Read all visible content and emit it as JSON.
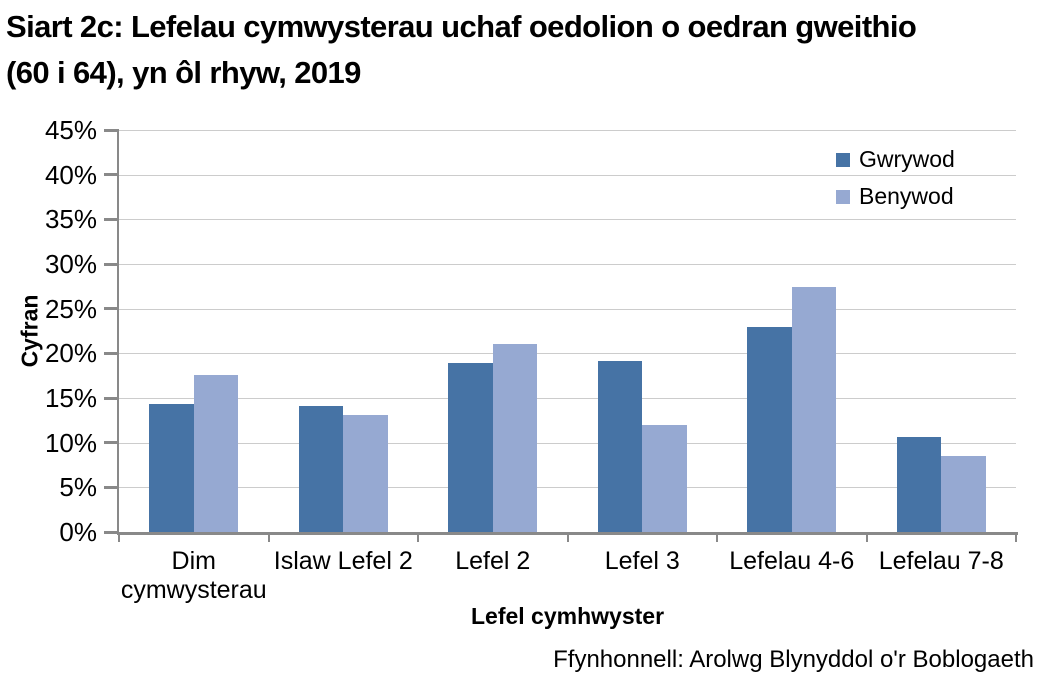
{
  "chart_data": {
    "type": "bar",
    "title": "Siart 2c: Lefelau cymwysterau uchaf oedolion o oedran gweithio (60 i 64), yn ôl rhyw, 2019",
    "categories": [
      "Dim cymwysterau",
      "Islaw Lefel 2",
      "Lefel 2",
      "Lefel 3",
      "Lefelau 4-6",
      "Lefelau 7-8"
    ],
    "series": [
      {
        "name": "Gwrywod",
        "color": "#4673a5",
        "values": [
          14.3,
          14.1,
          18.9,
          19.1,
          22.9,
          10.6
        ]
      },
      {
        "name": "Benywod",
        "color": "#96a9d2",
        "values": [
          17.6,
          13.1,
          21.1,
          12.0,
          27.4,
          8.5
        ]
      }
    ],
    "xlabel": "Lefel cymhwyster",
    "ylabel": "Cyfran",
    "ylim": [
      0,
      45
    ],
    "ytick_step": 5,
    "ytick_suffix": "%",
    "grid": true,
    "legend_position": "top-right",
    "source": "Ffynhonnell: Arolwg Blynyddol o'r Boblogaeth"
  },
  "colors": {
    "grid": "#cccccc",
    "axis": "#898989",
    "text": "#000000",
    "background": "#ffffff"
  }
}
